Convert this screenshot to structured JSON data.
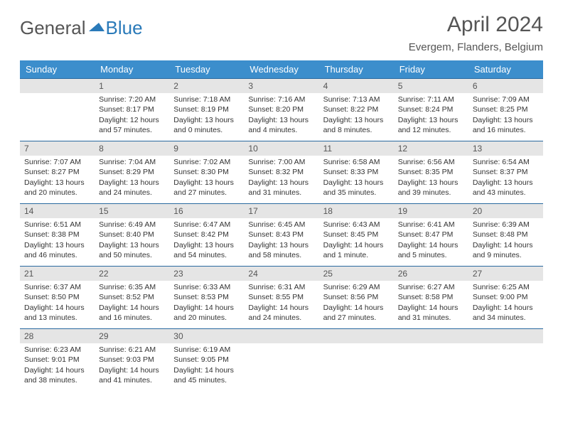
{
  "brand": {
    "word1": "General",
    "word2": "Blue",
    "word1_color": "#555555",
    "word2_color": "#2a7ab9"
  },
  "title": "April 2024",
  "location": "Evergem, Flanders, Belgium",
  "colors": {
    "header_bg": "#3c8ecc",
    "header_fg": "#ffffff",
    "daybar_bg": "#e5e5e5",
    "daybar_border": "#2a6aa0",
    "text": "#333333",
    "title_color": "#555555"
  },
  "weekdays": [
    "Sunday",
    "Monday",
    "Tuesday",
    "Wednesday",
    "Thursday",
    "Friday",
    "Saturday"
  ],
  "weeks": [
    [
      {
        "n": "",
        "sr": "",
        "ss": "",
        "dl": ""
      },
      {
        "n": "1",
        "sr": "Sunrise: 7:20 AM",
        "ss": "Sunset: 8:17 PM",
        "dl": "Daylight: 12 hours and 57 minutes."
      },
      {
        "n": "2",
        "sr": "Sunrise: 7:18 AM",
        "ss": "Sunset: 8:19 PM",
        "dl": "Daylight: 13 hours and 0 minutes."
      },
      {
        "n": "3",
        "sr": "Sunrise: 7:16 AM",
        "ss": "Sunset: 8:20 PM",
        "dl": "Daylight: 13 hours and 4 minutes."
      },
      {
        "n": "4",
        "sr": "Sunrise: 7:13 AM",
        "ss": "Sunset: 8:22 PM",
        "dl": "Daylight: 13 hours and 8 minutes."
      },
      {
        "n": "5",
        "sr": "Sunrise: 7:11 AM",
        "ss": "Sunset: 8:24 PM",
        "dl": "Daylight: 13 hours and 12 minutes."
      },
      {
        "n": "6",
        "sr": "Sunrise: 7:09 AM",
        "ss": "Sunset: 8:25 PM",
        "dl": "Daylight: 13 hours and 16 minutes."
      }
    ],
    [
      {
        "n": "7",
        "sr": "Sunrise: 7:07 AM",
        "ss": "Sunset: 8:27 PM",
        "dl": "Daylight: 13 hours and 20 minutes."
      },
      {
        "n": "8",
        "sr": "Sunrise: 7:04 AM",
        "ss": "Sunset: 8:29 PM",
        "dl": "Daylight: 13 hours and 24 minutes."
      },
      {
        "n": "9",
        "sr": "Sunrise: 7:02 AM",
        "ss": "Sunset: 8:30 PM",
        "dl": "Daylight: 13 hours and 27 minutes."
      },
      {
        "n": "10",
        "sr": "Sunrise: 7:00 AM",
        "ss": "Sunset: 8:32 PM",
        "dl": "Daylight: 13 hours and 31 minutes."
      },
      {
        "n": "11",
        "sr": "Sunrise: 6:58 AM",
        "ss": "Sunset: 8:33 PM",
        "dl": "Daylight: 13 hours and 35 minutes."
      },
      {
        "n": "12",
        "sr": "Sunrise: 6:56 AM",
        "ss": "Sunset: 8:35 PM",
        "dl": "Daylight: 13 hours and 39 minutes."
      },
      {
        "n": "13",
        "sr": "Sunrise: 6:54 AM",
        "ss": "Sunset: 8:37 PM",
        "dl": "Daylight: 13 hours and 43 minutes."
      }
    ],
    [
      {
        "n": "14",
        "sr": "Sunrise: 6:51 AM",
        "ss": "Sunset: 8:38 PM",
        "dl": "Daylight: 13 hours and 46 minutes."
      },
      {
        "n": "15",
        "sr": "Sunrise: 6:49 AM",
        "ss": "Sunset: 8:40 PM",
        "dl": "Daylight: 13 hours and 50 minutes."
      },
      {
        "n": "16",
        "sr": "Sunrise: 6:47 AM",
        "ss": "Sunset: 8:42 PM",
        "dl": "Daylight: 13 hours and 54 minutes."
      },
      {
        "n": "17",
        "sr": "Sunrise: 6:45 AM",
        "ss": "Sunset: 8:43 PM",
        "dl": "Daylight: 13 hours and 58 minutes."
      },
      {
        "n": "18",
        "sr": "Sunrise: 6:43 AM",
        "ss": "Sunset: 8:45 PM",
        "dl": "Daylight: 14 hours and 1 minute."
      },
      {
        "n": "19",
        "sr": "Sunrise: 6:41 AM",
        "ss": "Sunset: 8:47 PM",
        "dl": "Daylight: 14 hours and 5 minutes."
      },
      {
        "n": "20",
        "sr": "Sunrise: 6:39 AM",
        "ss": "Sunset: 8:48 PM",
        "dl": "Daylight: 14 hours and 9 minutes."
      }
    ],
    [
      {
        "n": "21",
        "sr": "Sunrise: 6:37 AM",
        "ss": "Sunset: 8:50 PM",
        "dl": "Daylight: 14 hours and 13 minutes."
      },
      {
        "n": "22",
        "sr": "Sunrise: 6:35 AM",
        "ss": "Sunset: 8:52 PM",
        "dl": "Daylight: 14 hours and 16 minutes."
      },
      {
        "n": "23",
        "sr": "Sunrise: 6:33 AM",
        "ss": "Sunset: 8:53 PM",
        "dl": "Daylight: 14 hours and 20 minutes."
      },
      {
        "n": "24",
        "sr": "Sunrise: 6:31 AM",
        "ss": "Sunset: 8:55 PM",
        "dl": "Daylight: 14 hours and 24 minutes."
      },
      {
        "n": "25",
        "sr": "Sunrise: 6:29 AM",
        "ss": "Sunset: 8:56 PM",
        "dl": "Daylight: 14 hours and 27 minutes."
      },
      {
        "n": "26",
        "sr": "Sunrise: 6:27 AM",
        "ss": "Sunset: 8:58 PM",
        "dl": "Daylight: 14 hours and 31 minutes."
      },
      {
        "n": "27",
        "sr": "Sunrise: 6:25 AM",
        "ss": "Sunset: 9:00 PM",
        "dl": "Daylight: 14 hours and 34 minutes."
      }
    ],
    [
      {
        "n": "28",
        "sr": "Sunrise: 6:23 AM",
        "ss": "Sunset: 9:01 PM",
        "dl": "Daylight: 14 hours and 38 minutes."
      },
      {
        "n": "29",
        "sr": "Sunrise: 6:21 AM",
        "ss": "Sunset: 9:03 PM",
        "dl": "Daylight: 14 hours and 41 minutes."
      },
      {
        "n": "30",
        "sr": "Sunrise: 6:19 AM",
        "ss": "Sunset: 9:05 PM",
        "dl": "Daylight: 14 hours and 45 minutes."
      },
      {
        "n": "",
        "sr": "",
        "ss": "",
        "dl": ""
      },
      {
        "n": "",
        "sr": "",
        "ss": "",
        "dl": ""
      },
      {
        "n": "",
        "sr": "",
        "ss": "",
        "dl": ""
      },
      {
        "n": "",
        "sr": "",
        "ss": "",
        "dl": ""
      }
    ]
  ]
}
